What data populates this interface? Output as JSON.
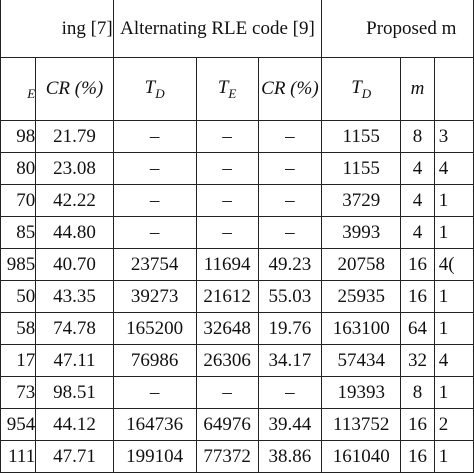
{
  "table": {
    "group_headers": [
      "ing [7]",
      "Alternating RLE code [9]",
      "Proposed m"
    ],
    "column_headers": [
      {
        "main": "",
        "sub": "E"
      },
      {
        "main": "CR (%)"
      },
      {
        "main": "T",
        "sub": "D"
      },
      {
        "main": "T",
        "sub": "E"
      },
      {
        "main": "CR (%)"
      },
      {
        "main": "T",
        "sub": "D"
      },
      {
        "main": "m"
      }
    ],
    "rows": [
      [
        "98",
        "21.79",
        "–",
        "–",
        "–",
        "1155",
        "8",
        "3"
      ],
      [
        "80",
        "23.08",
        "–",
        "–",
        "–",
        "1155",
        "4",
        "4"
      ],
      [
        "70",
        "42.22",
        "–",
        "–",
        "–",
        "3729",
        "4",
        "1"
      ],
      [
        "85",
        "44.80",
        "–",
        "–",
        "–",
        "3993",
        "4",
        "1"
      ],
      [
        "985",
        "40.70",
        "23754",
        "11694",
        "49.23",
        "20758",
        "16",
        "4("
      ],
      [
        "50",
        "43.35",
        "39273",
        "21612",
        "55.03",
        "25935",
        "16",
        "1"
      ],
      [
        "58",
        "74.78",
        "165200",
        "32648",
        "19.76",
        "163100",
        "64",
        "1"
      ],
      [
        "17",
        "47.11",
        "76986",
        "26306",
        "34.17",
        "57434",
        "32",
        "4"
      ],
      [
        "73",
        "98.51",
        "–",
        "–",
        "–",
        "19393",
        "8",
        "1"
      ],
      [
        "954",
        "44.12",
        "164736",
        "64976",
        "39.44",
        "113752",
        "16",
        "2"
      ],
      [
        "111",
        "47.71",
        "199104",
        "77372",
        "38.86",
        "161040",
        "16",
        "1"
      ]
    ]
  }
}
